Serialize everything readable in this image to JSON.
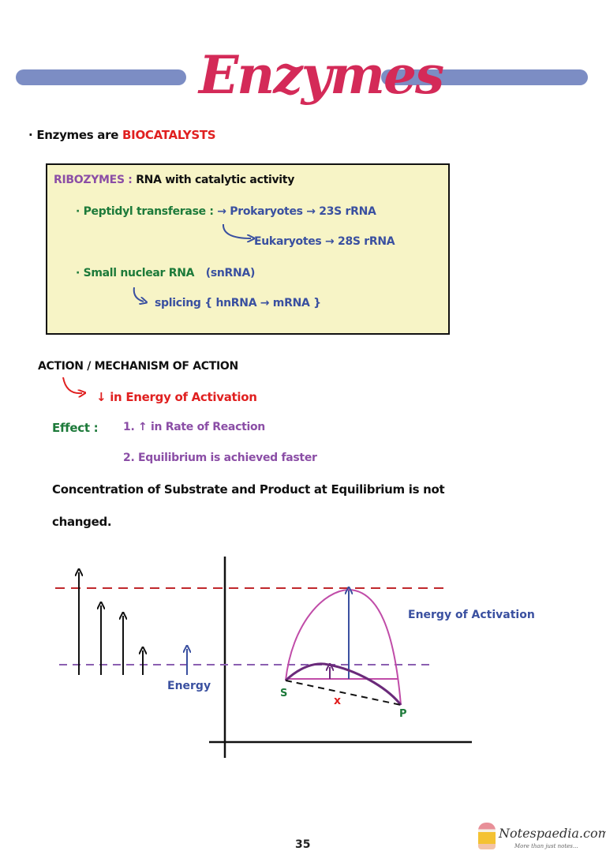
{
  "header": {
    "title": "Enzymes",
    "bar_color": "#7c8dc4",
    "title_color": "#d42a58"
  },
  "intro": {
    "prefix": "· Enzymes are",
    "highlight": "BIOCATALYSTS"
  },
  "ribozymes_box": {
    "heading": "RIBOZYMES :",
    "heading_desc": "RNA with catalytic activity",
    "peptidyl": {
      "label": "· Peptidyl transferase :",
      "arrow1": "→",
      "prokaryotes": "Prokaryotes → 23S rRNA",
      "eukaryotes": "Eukaryotes → 28S rRNA"
    },
    "snrna": {
      "label": "· Small nuclear RNA",
      "abbr": "(snRNA)",
      "splicing": "splicing",
      "splicing_detail": "{ hnRNA → mRNA }"
    }
  },
  "action": {
    "heading": "ACTION / MECHANISM OF ACTION",
    "point": "↓ in Energy of Activation",
    "effect_label": "Effect :",
    "effects": [
      "1. ↑ in Rate of Reaction",
      "2. Equilibrium is achieved faster"
    ],
    "note_line1": "Concentration of Substrate and Product at Equilibrium is not",
    "note_line2": "changed."
  },
  "diagram": {
    "energy_label": "Energy",
    "activation_label": "Energy of Activation",
    "substrate": "S",
    "product": "P",
    "cross": "x"
  },
  "footer": {
    "page_number": "35",
    "logo_name": "Notespaedia.com",
    "logo_tagline": "More than just notes..."
  }
}
